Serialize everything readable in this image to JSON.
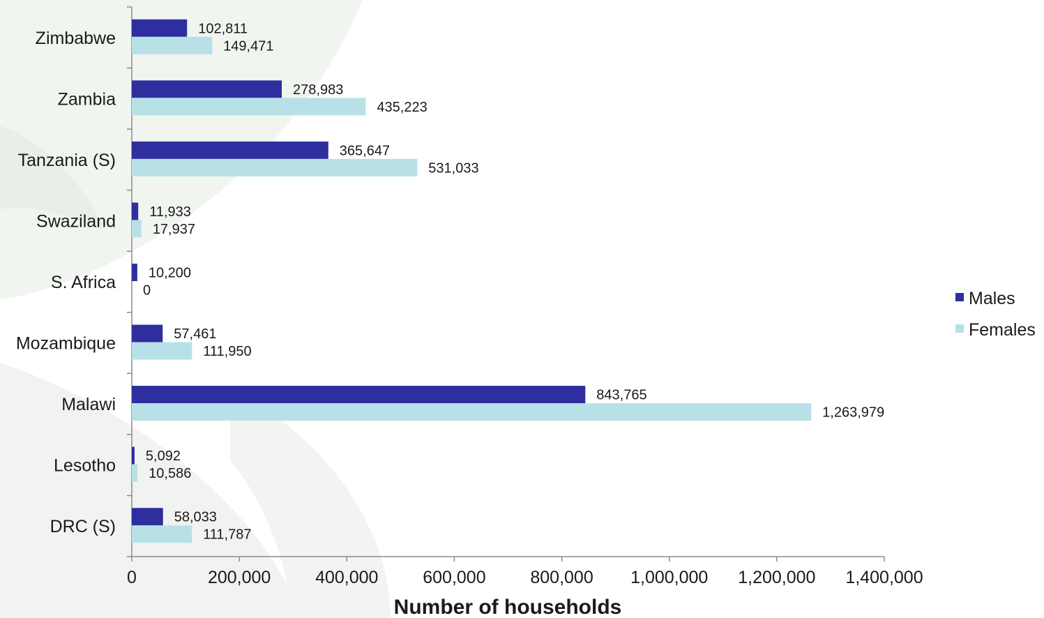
{
  "chart_data": {
    "type": "bar",
    "orientation": "horizontal",
    "categories": [
      "DRC (S)",
      "Lesotho",
      "Malawi",
      "Mozambique",
      "S. Africa",
      "Swaziland",
      "Tanzania (S)",
      "Zambia",
      "Zimbabwe"
    ],
    "series": [
      {
        "name": "Males",
        "color": "#2e2e9e",
        "values": [
          58033,
          5092,
          843765,
          57461,
          10200,
          11933,
          365647,
          278983,
          102811
        ],
        "labels": [
          "58,033",
          "5,092",
          "843,765",
          "57,461",
          "10,200",
          "11,933",
          "365,647",
          "278,983",
          "102,811"
        ]
      },
      {
        "name": "Females",
        "color": "#b7e1e6",
        "values": [
          111787,
          10586,
          1263979,
          111950,
          0,
          17937,
          531033,
          435223,
          149471
        ],
        "labels": [
          "111,787",
          "10,586",
          "1,263,979",
          "111,950",
          "0",
          "17,937",
          "531,033",
          "435,223",
          "149,471"
        ]
      }
    ],
    "xlabel": "Number of households",
    "ylabel": "",
    "xlim": [
      0,
      1400000
    ],
    "xticks": [
      0,
      200000,
      400000,
      600000,
      800000,
      1000000,
      1200000,
      1400000
    ],
    "xtick_labels": [
      "0",
      "200,000",
      "400,000",
      "600,000",
      "800,000",
      "1,000,000",
      "1,200,000",
      "1,400,000"
    ],
    "grid": false,
    "legend_position": "right"
  }
}
